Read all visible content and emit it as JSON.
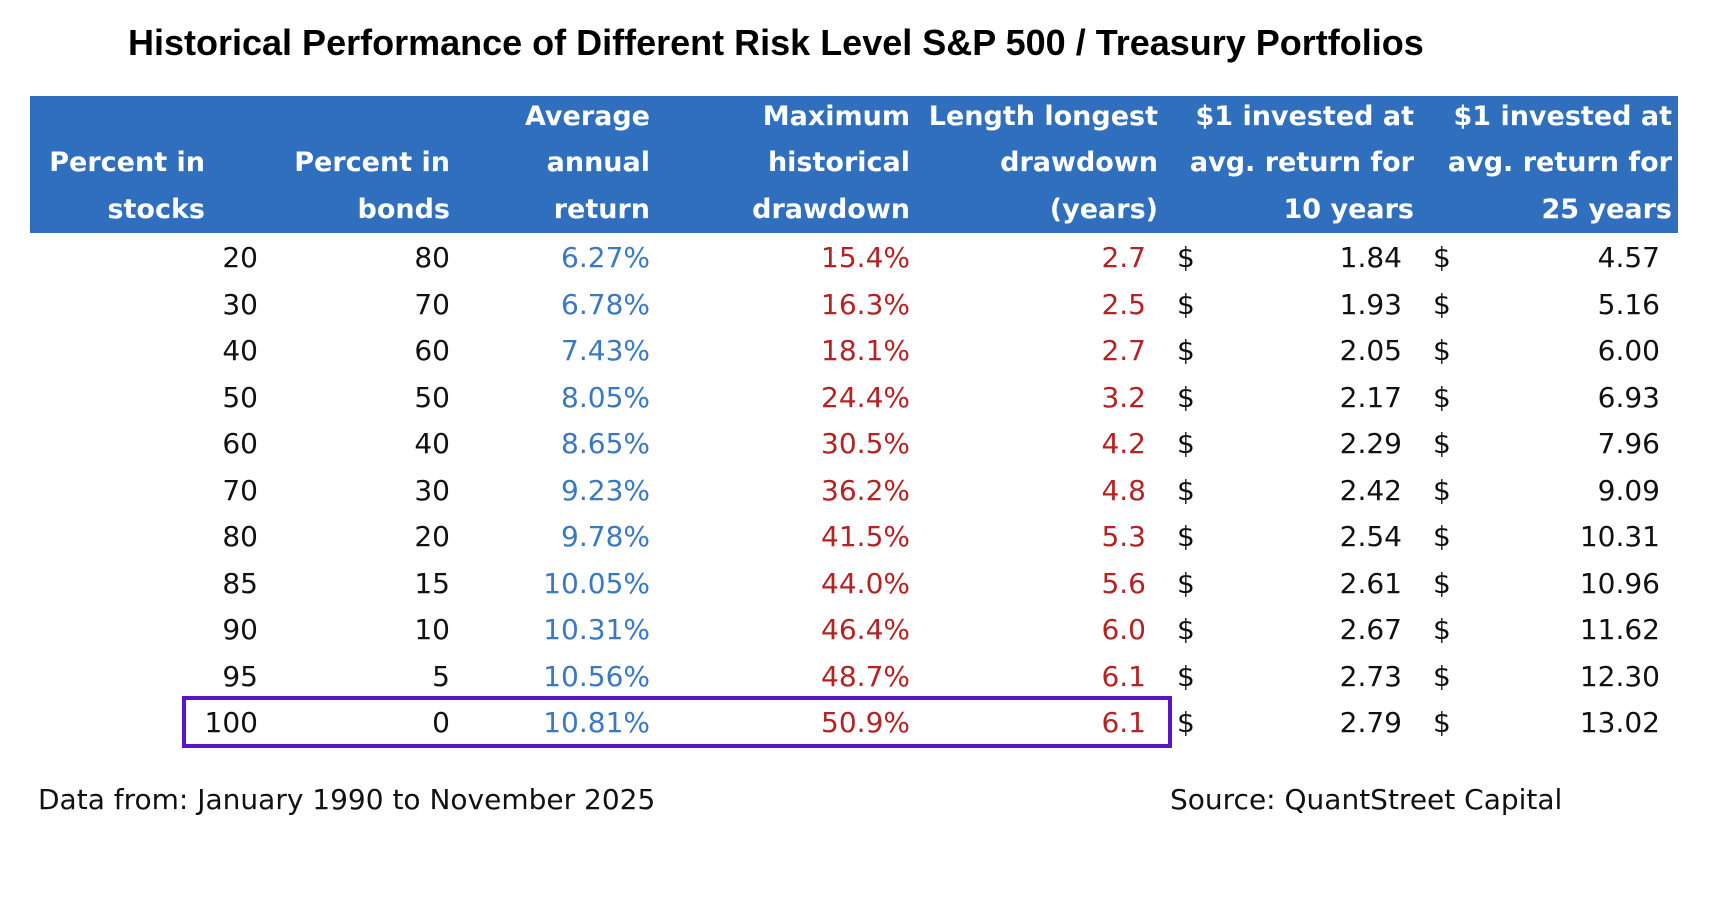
{
  "title": "Historical Performance of Different Risk Level S&P 500 / Treasury Portfolios",
  "footer": {
    "data_range": "Data from: January 1990 to November 2025",
    "source": "Source: QuantStreet Capital"
  },
  "colors": {
    "header_bg": "#2f6fbd",
    "return_text": "#3a78c4",
    "drawdown_text": "#b42323",
    "highlight_border": "#5a15c9"
  },
  "chart_data": {
    "type": "table",
    "highlighted_row": 10,
    "columns": [
      [
        "Percent in",
        "stocks"
      ],
      [
        "Percent in",
        "bonds"
      ],
      [
        "Average",
        "annual",
        "return"
      ],
      [
        "Maximum",
        "historical",
        "drawdown"
      ],
      [
        "Length longest",
        "drawdown",
        "(years)"
      ],
      [
        "$1 invested at",
        "avg. return for",
        "10 years"
      ],
      [
        "$1 invested at",
        "avg. return for",
        "25 years"
      ]
    ],
    "currency_symbol": "$",
    "rows": [
      {
        "stocks": "20",
        "bonds": "80",
        "return": "6.27%",
        "drawdown": "15.4%",
        "length": "2.7",
        "v10": "1.84",
        "v25": "4.57"
      },
      {
        "stocks": "30",
        "bonds": "70",
        "return": "6.78%",
        "drawdown": "16.3%",
        "length": "2.5",
        "v10": "1.93",
        "v25": "5.16"
      },
      {
        "stocks": "40",
        "bonds": "60",
        "return": "7.43%",
        "drawdown": "18.1%",
        "length": "2.7",
        "v10": "2.05",
        "v25": "6.00"
      },
      {
        "stocks": "50",
        "bonds": "50",
        "return": "8.05%",
        "drawdown": "24.4%",
        "length": "3.2",
        "v10": "2.17",
        "v25": "6.93"
      },
      {
        "stocks": "60",
        "bonds": "40",
        "return": "8.65%",
        "drawdown": "30.5%",
        "length": "4.2",
        "v10": "2.29",
        "v25": "7.96"
      },
      {
        "stocks": "70",
        "bonds": "30",
        "return": "9.23%",
        "drawdown": "36.2%",
        "length": "4.8",
        "v10": "2.42",
        "v25": "9.09"
      },
      {
        "stocks": "80",
        "bonds": "20",
        "return": "9.78%",
        "drawdown": "41.5%",
        "length": "5.3",
        "v10": "2.54",
        "v25": "10.31"
      },
      {
        "stocks": "85",
        "bonds": "15",
        "return": "10.05%",
        "drawdown": "44.0%",
        "length": "5.6",
        "v10": "2.61",
        "v25": "10.96"
      },
      {
        "stocks": "90",
        "bonds": "10",
        "return": "10.31%",
        "drawdown": "46.4%",
        "length": "6.0",
        "v10": "2.67",
        "v25": "11.62"
      },
      {
        "stocks": "95",
        "bonds": "5",
        "return": "10.56%",
        "drawdown": "48.7%",
        "length": "6.1",
        "v10": "2.73",
        "v25": "12.30"
      },
      {
        "stocks": "100",
        "bonds": "0",
        "return": "10.81%",
        "drawdown": "50.9%",
        "length": "6.1",
        "v10": "2.79",
        "v25": "13.02"
      }
    ]
  }
}
